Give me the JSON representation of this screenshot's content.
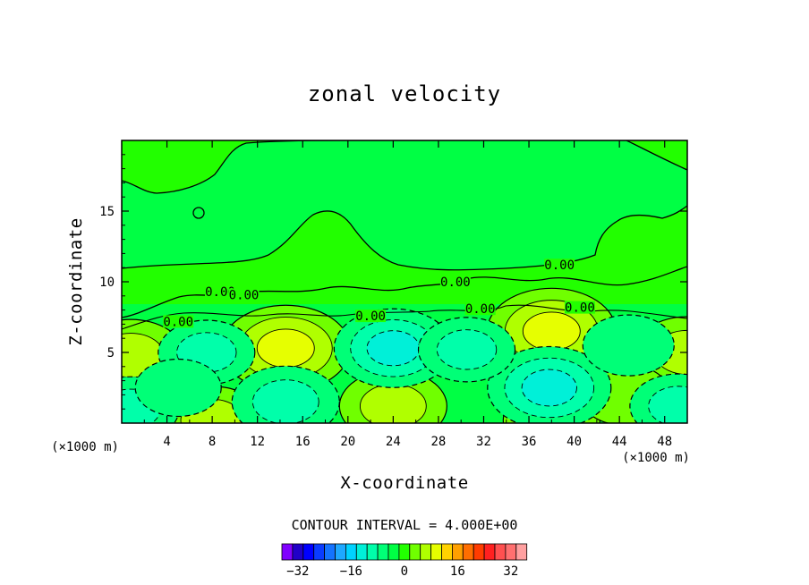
{
  "chart_data": {
    "type": "contour",
    "title": "zonal velocity",
    "xlabel": "X-coordinate",
    "ylabel": "Z-coordinate",
    "x_unit_left": "(×1000 m)",
    "x_unit_right": "(×1000 m)",
    "xlim": [
      0,
      50
    ],
    "ylim": [
      0,
      20
    ],
    "x_ticks": [
      4,
      8,
      12,
      16,
      20,
      24,
      28,
      32,
      36,
      40,
      44,
      48
    ],
    "y_ticks": [
      5,
      10,
      15
    ],
    "contour_interval_text": "CONTOUR INTERVAL = 4.000E+00",
    "contour_labels": [
      {
        "text": "0.00",
        "x": 5.0,
        "y": 7.0
      },
      {
        "text": "0.00",
        "x": 8.7,
        "y": 9.1
      },
      {
        "text": "0.00",
        "x": 10.8,
        "y": 8.9
      },
      {
        "text": "0.00",
        "x": 22.0,
        "y": 7.4
      },
      {
        "text": "0.00",
        "x": 29.5,
        "y": 9.8
      },
      {
        "text": "0.00",
        "x": 31.7,
        "y": 7.9
      },
      {
        "text": "0.00",
        "x": 38.7,
        "y": 11.0
      },
      {
        "text": "0.00",
        "x": 40.5,
        "y": 8.0
      }
    ],
    "colorbar": {
      "colors": [
        "#8000ff",
        "#2000c8",
        "#0000ff",
        "#0a3cff",
        "#1473ff",
        "#1ea8ff",
        "#00d2ff",
        "#00f0d8",
        "#00ffaa",
        "#00ff77",
        "#00ff44",
        "#22ff00",
        "#70ff00",
        "#b0ff00",
        "#e6ff00",
        "#ffd200",
        "#ffa000",
        "#ff6e00",
        "#ff3c00",
        "#ff2020",
        "#ff5050",
        "#ff7070",
        "#ffa0a0"
      ],
      "tick_labels": [
        "−32",
        "−16",
        "0",
        "16",
        "32"
      ]
    },
    "features": [
      {
        "sign": "+",
        "x": 14.5,
        "y": 5.3,
        "amplitude": 14
      },
      {
        "sign": "+",
        "x": 38.0,
        "y": 6.5,
        "amplitude": 14
      },
      {
        "sign": "+",
        "x": 0.8,
        "y": 4.8,
        "amplitude": 10
      },
      {
        "sign": "+",
        "x": 50.0,
        "y": 5.0,
        "amplitude": 10
      },
      {
        "sign": "+",
        "x": 24.0,
        "y": 1.2,
        "amplitude": 10
      },
      {
        "sign": "+",
        "x": 8.0,
        "y": 0.2,
        "amplitude": 9
      },
      {
        "sign": "+",
        "x": 38.0,
        "y": 0.2,
        "amplitude": 8
      },
      {
        "sign": "+",
        "x": 44.5,
        "y": 2.0,
        "amplitude": 7
      },
      {
        "sign": "-",
        "x": 24.0,
        "y": 5.3,
        "amplitude": 12
      },
      {
        "sign": "-",
        "x": 37.8,
        "y": 2.5,
        "amplitude": 13
      },
      {
        "sign": "-",
        "x": 7.5,
        "y": 5.0,
        "amplitude": 8
      },
      {
        "sign": "-",
        "x": 30.5,
        "y": 5.2,
        "amplitude": 8
      },
      {
        "sign": "-",
        "x": 44.8,
        "y": 5.5,
        "amplitude": 7
      },
      {
        "sign": "-",
        "x": 14.5,
        "y": 1.5,
        "amplitude": 10
      },
      {
        "sign": "-",
        "x": 0.8,
        "y": 1.0,
        "amplitude": 8
      },
      {
        "sign": "-",
        "x": 49.2,
        "y": 1.2,
        "amplitude": 8
      },
      {
        "sign": "-",
        "x": 5.0,
        "y": 2.5,
        "amplitude": 6
      }
    ]
  }
}
